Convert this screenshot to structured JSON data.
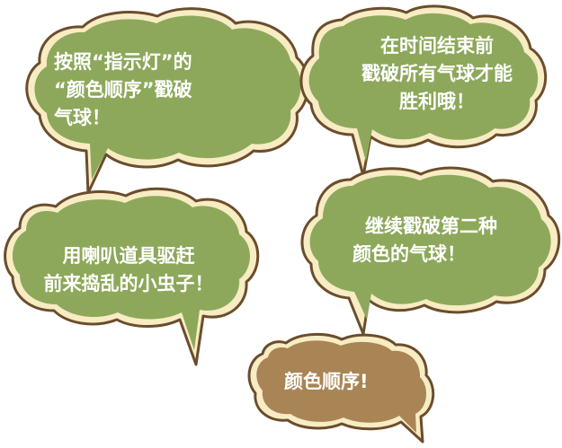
{
  "colors": {
    "bubble_green": "#8da85a",
    "bubble_brown": "#a98454",
    "outline": "#6b4d2c",
    "rim": "#f8ecc4",
    "text": "#ffffff"
  },
  "bubbles": [
    {
      "name": "instruction-pop-balloons-by-order",
      "color": "green",
      "lines": [
        "按照“指示灯”的",
        "“颜色顺序”戳破",
        "气球！"
      ]
    },
    {
      "name": "instruction-pop-all-before-time",
      "color": "green",
      "lines": [
        "在时间结束前",
        "戳破所有气球才能",
        "胜利哦！"
      ]
    },
    {
      "name": "instruction-use-horn",
      "color": "green",
      "lines": [
        "用喇叭道具驱赶",
        "前来捣乱的小虫子！"
      ]
    },
    {
      "name": "instruction-next-color",
      "color": "green",
      "lines": [
        "继续戳破第二种",
        "颜色的气球！"
      ]
    },
    {
      "name": "instruction-color-order",
      "color": "brown",
      "lines": [
        "颜色顺序!"
      ]
    }
  ]
}
